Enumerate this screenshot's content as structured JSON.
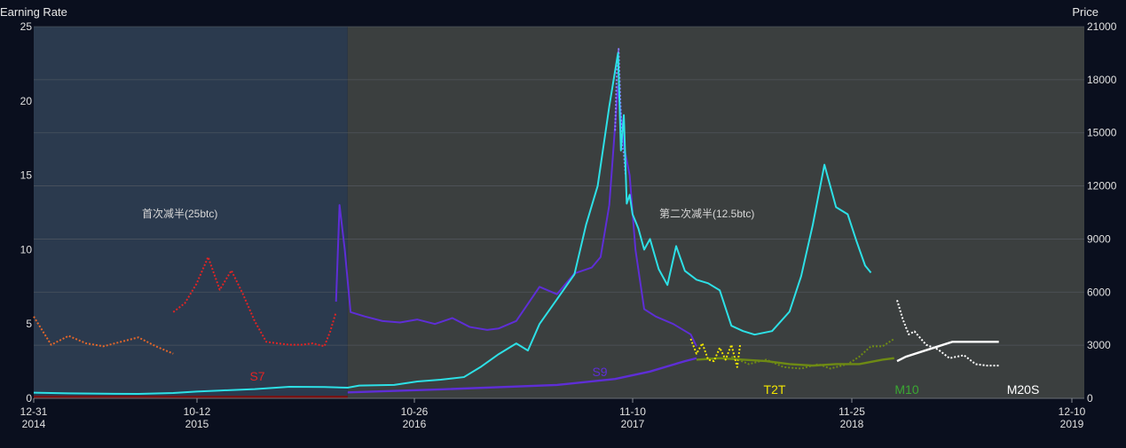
{
  "chart_data": {
    "type": "line",
    "title": "",
    "ylabel_left": "Earning Rate",
    "ylabel_right": "Price",
    "x_ticks": [
      {
        "label": "12-31",
        "year": "2014"
      },
      {
        "label": "10-12",
        "year": "2015"
      },
      {
        "label": "10-26",
        "year": "2016"
      },
      {
        "label": "11-10",
        "year": "2017"
      },
      {
        "label": "11-25",
        "year": "2018"
      },
      {
        "label": "12-10",
        "year": "2019"
      }
    ],
    "y_left_ticks": [
      "0",
      "5",
      "10",
      "15",
      "20",
      "25"
    ],
    "y_right_ticks": [
      "0",
      "3000",
      "6000",
      "9000",
      "12000",
      "15000",
      "18000",
      "21000"
    ],
    "ylim_left": [
      0,
      25
    ],
    "ylim_right": [
      0,
      21000
    ],
    "xlim": [
      0,
      1440
    ],
    "grid": true,
    "regions": [
      {
        "label": "首次减半(25btc)",
        "x_range": [
          0,
          540
        ],
        "color": "#2b3a4e"
      },
      {
        "label": "第二次减半(12.5btc)",
        "x_range": [
          540,
          1440
        ],
        "color": "#3b3f3f"
      }
    ],
    "price": {
      "name": "Price",
      "color": "#2de0e6",
      "x": [
        0,
        60,
        120,
        180,
        240,
        280,
        320,
        380,
        440,
        500,
        540,
        560,
        620,
        660,
        700,
        740,
        770,
        800,
        830,
        850,
        870,
        900,
        930,
        950,
        970,
        990,
        1005,
        1010,
        1015,
        1020,
        1025,
        1030,
        1040,
        1050,
        1060,
        1075,
        1090,
        1105,
        1120,
        1140,
        1160,
        1180,
        1200,
        1220,
        1240,
        1270,
        1300,
        1320,
        1340,
        1360,
        1380,
        1400,
        1415,
        1430,
        1440
      ],
      "values": [
        320,
        280,
        260,
        250,
        300,
        380,
        440,
        520,
        650,
        640,
        600,
        720,
        760,
        950,
        1050,
        1200,
        1800,
        2500,
        3100,
        2700,
        4200,
        5600,
        7000,
        9800,
        12000,
        16500,
        19500,
        14000,
        16000,
        11000,
        11500,
        10400,
        9600,
        8400,
        9000,
        7300,
        6400,
        8600,
        7200,
        6700,
        6500,
        6100,
        4100,
        3800,
        3600,
        3800,
        4900,
        6900,
        9800,
        13200,
        10800,
        10400,
        8900,
        7500,
        7100
      ]
    },
    "series": [
      {
        "name": "",
        "color": "#e2662a",
        "dotted": true,
        "x": [
          0,
          30,
          60,
          90,
          120,
          150,
          180,
          210,
          240
        ],
        "values": [
          5.5,
          3.6,
          4.2,
          3.7,
          3.5,
          3.8,
          4.1,
          3.5,
          3.0
        ]
      },
      {
        "name": "S7",
        "color": "#e02424",
        "dotted": true,
        "x": [
          240,
          260,
          280,
          300,
          320,
          340,
          360,
          380,
          400,
          420,
          440,
          460,
          480,
          500,
          510,
          520
        ],
        "values": [
          5.8,
          6.4,
          7.7,
          9.5,
          7.3,
          8.6,
          7.0,
          5.2,
          3.8,
          3.7,
          3.6,
          3.6,
          3.7,
          3.5,
          4.5,
          5.8
        ]
      },
      {
        "name": "S9",
        "color": "#5e2ed6",
        "dotted": false,
        "x": [
          520,
          526,
          535,
          545,
          570,
          600,
          630,
          660,
          690,
          720,
          750,
          780,
          800,
          830,
          870,
          900,
          930,
          960,
          975,
          990,
          1005,
          1015,
          1025,
          1035,
          1050,
          1070,
          1100,
          1130,
          1140
        ],
        "values": [
          6.5,
          13.0,
          10.0,
          5.8,
          5.5,
          5.2,
          5.1,
          5.3,
          5.0,
          5.4,
          4.8,
          4.6,
          4.7,
          5.2,
          7.5,
          7.0,
          8.4,
          8.8,
          9.5,
          13.0,
          21.0,
          17.0,
          15.0,
          10.0,
          6.0,
          5.5,
          5.0,
          4.3,
          3.5
        ]
      },
      {
        "name": "",
        "color": "#8a7cff",
        "dotted": true,
        "x": [
          1000,
          1003,
          1006,
          1009,
          1012,
          1015,
          1018
        ],
        "values": [
          18.0,
          22.0,
          23.5,
          20.0,
          17.0,
          16.5,
          15.0
        ]
      },
      {
        "name": "T2T",
        "color": "#f2e600",
        "dotted": true,
        "x": [
          1130,
          1140,
          1150,
          1160,
          1170,
          1180,
          1190,
          1200,
          1210,
          1215
        ],
        "values": [
          4.0,
          3.0,
          3.7,
          2.6,
          2.5,
          3.4,
          2.6,
          3.6,
          2.1,
          3.6
        ]
      },
      {
        "name": "M10",
        "color": "#6e8a14",
        "dotted": true,
        "x": [
          1200,
          1230,
          1260,
          1290,
          1320,
          1350,
          1370,
          1400,
          1420,
          1440,
          1460,
          1480
        ],
        "values": [
          2.8,
          2.3,
          2.6,
          2.1,
          2.0,
          2.3,
          2.0,
          2.3,
          2.8,
          3.5,
          3.5,
          4.0
        ]
      },
      {
        "name": "",
        "color": "#ffffff",
        "dotted": true,
        "x": [
          1485,
          1495,
          1505,
          1515,
          1535,
          1555,
          1575,
          1600,
          1620,
          1640,
          1660
        ],
        "values": [
          6.6,
          5.3,
          4.3,
          4.5,
          3.6,
          3.3,
          2.7,
          2.9,
          2.3,
          2.2,
          2.2
        ]
      }
    ],
    "cost_series": [
      {
        "color": "#7a1010",
        "x": [
          0,
          540
        ],
        "values": [
          0.1,
          0.1
        ]
      },
      {
        "color": "#5e2ed6",
        "x": [
          540,
          700,
          900,
          1000,
          1060,
          1120,
          1140
        ],
        "values": [
          0.4,
          0.6,
          0.9,
          1.3,
          1.8,
          2.5,
          2.7
        ]
      },
      {
        "color": "#6e8a14",
        "x": [
          1140,
          1180,
          1220,
          1260,
          1300,
          1340,
          1380,
          1420,
          1460,
          1480
        ],
        "values": [
          2.6,
          2.7,
          2.6,
          2.5,
          2.3,
          2.2,
          2.3,
          2.3,
          2.6,
          2.7
        ]
      },
      {
        "color": "#ffffff",
        "x": [
          1485,
          1500,
          1540,
          1580,
          1600,
          1640,
          1660
        ],
        "values": [
          2.5,
          2.8,
          3.3,
          3.8,
          3.8,
          3.8,
          3.8
        ]
      }
    ],
    "annotations": [
      {
        "text": "S7",
        "color": "#e02424",
        "x": 435,
        "y": 1.4
      },
      {
        "text": "S9",
        "color": "#5e2ed6",
        "x": 1000,
        "y": 1.8
      },
      {
        "text": "T2T",
        "color": "#f2e600",
        "x": 1290,
        "y": 0.6
      },
      {
        "text": "M10",
        "color": "#3aa832",
        "x": 1510,
        "y": 0.6
      },
      {
        "text": "M20S",
        "color": "#ffffff",
        "x": 1700,
        "y": 0.6
      }
    ]
  }
}
